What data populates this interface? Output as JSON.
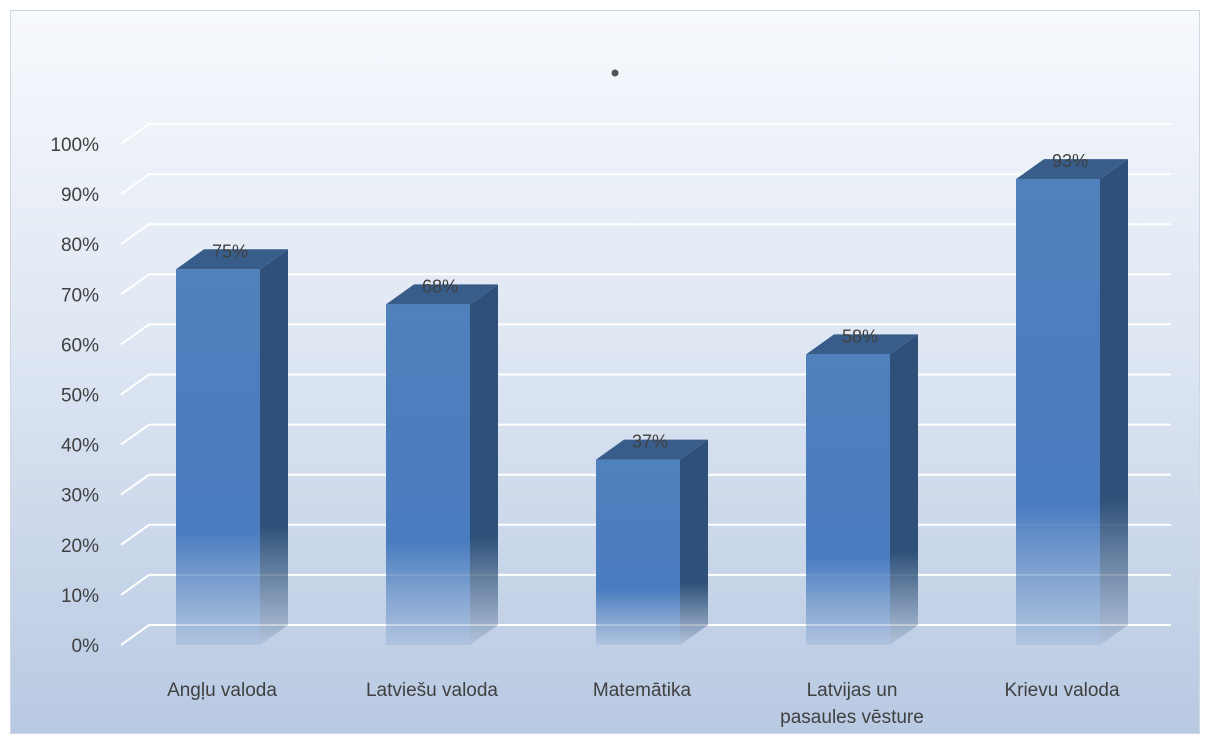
{
  "chart_data": {
    "type": "bar",
    "title": "",
    "categories": [
      [
        "Angļu valoda"
      ],
      [
        "Latviešu valoda"
      ],
      [
        "Matemātika"
      ],
      [
        "Latvijas un",
        "pasaules vēsture"
      ],
      [
        "Krievu valoda"
      ]
    ],
    "values": [
      75,
      68,
      37,
      58,
      93
    ],
    "data_labels": [
      "75%",
      "68%",
      "37%",
      "58%",
      "93%"
    ],
    "y_ticks": [
      "0%",
      "10%",
      "20%",
      "30%",
      "40%",
      "50%",
      "60%",
      "70%",
      "80%",
      "90%",
      "100%"
    ],
    "ylim": [
      0,
      100
    ],
    "grid": true,
    "legend": "none",
    "style": "3d-column"
  },
  "colors": {
    "bar_front_top": "#4f81bd",
    "bar_side": "#2f5179",
    "bar_top": "#385d8a",
    "gridline": "#ffffff",
    "text": "#404040"
  }
}
